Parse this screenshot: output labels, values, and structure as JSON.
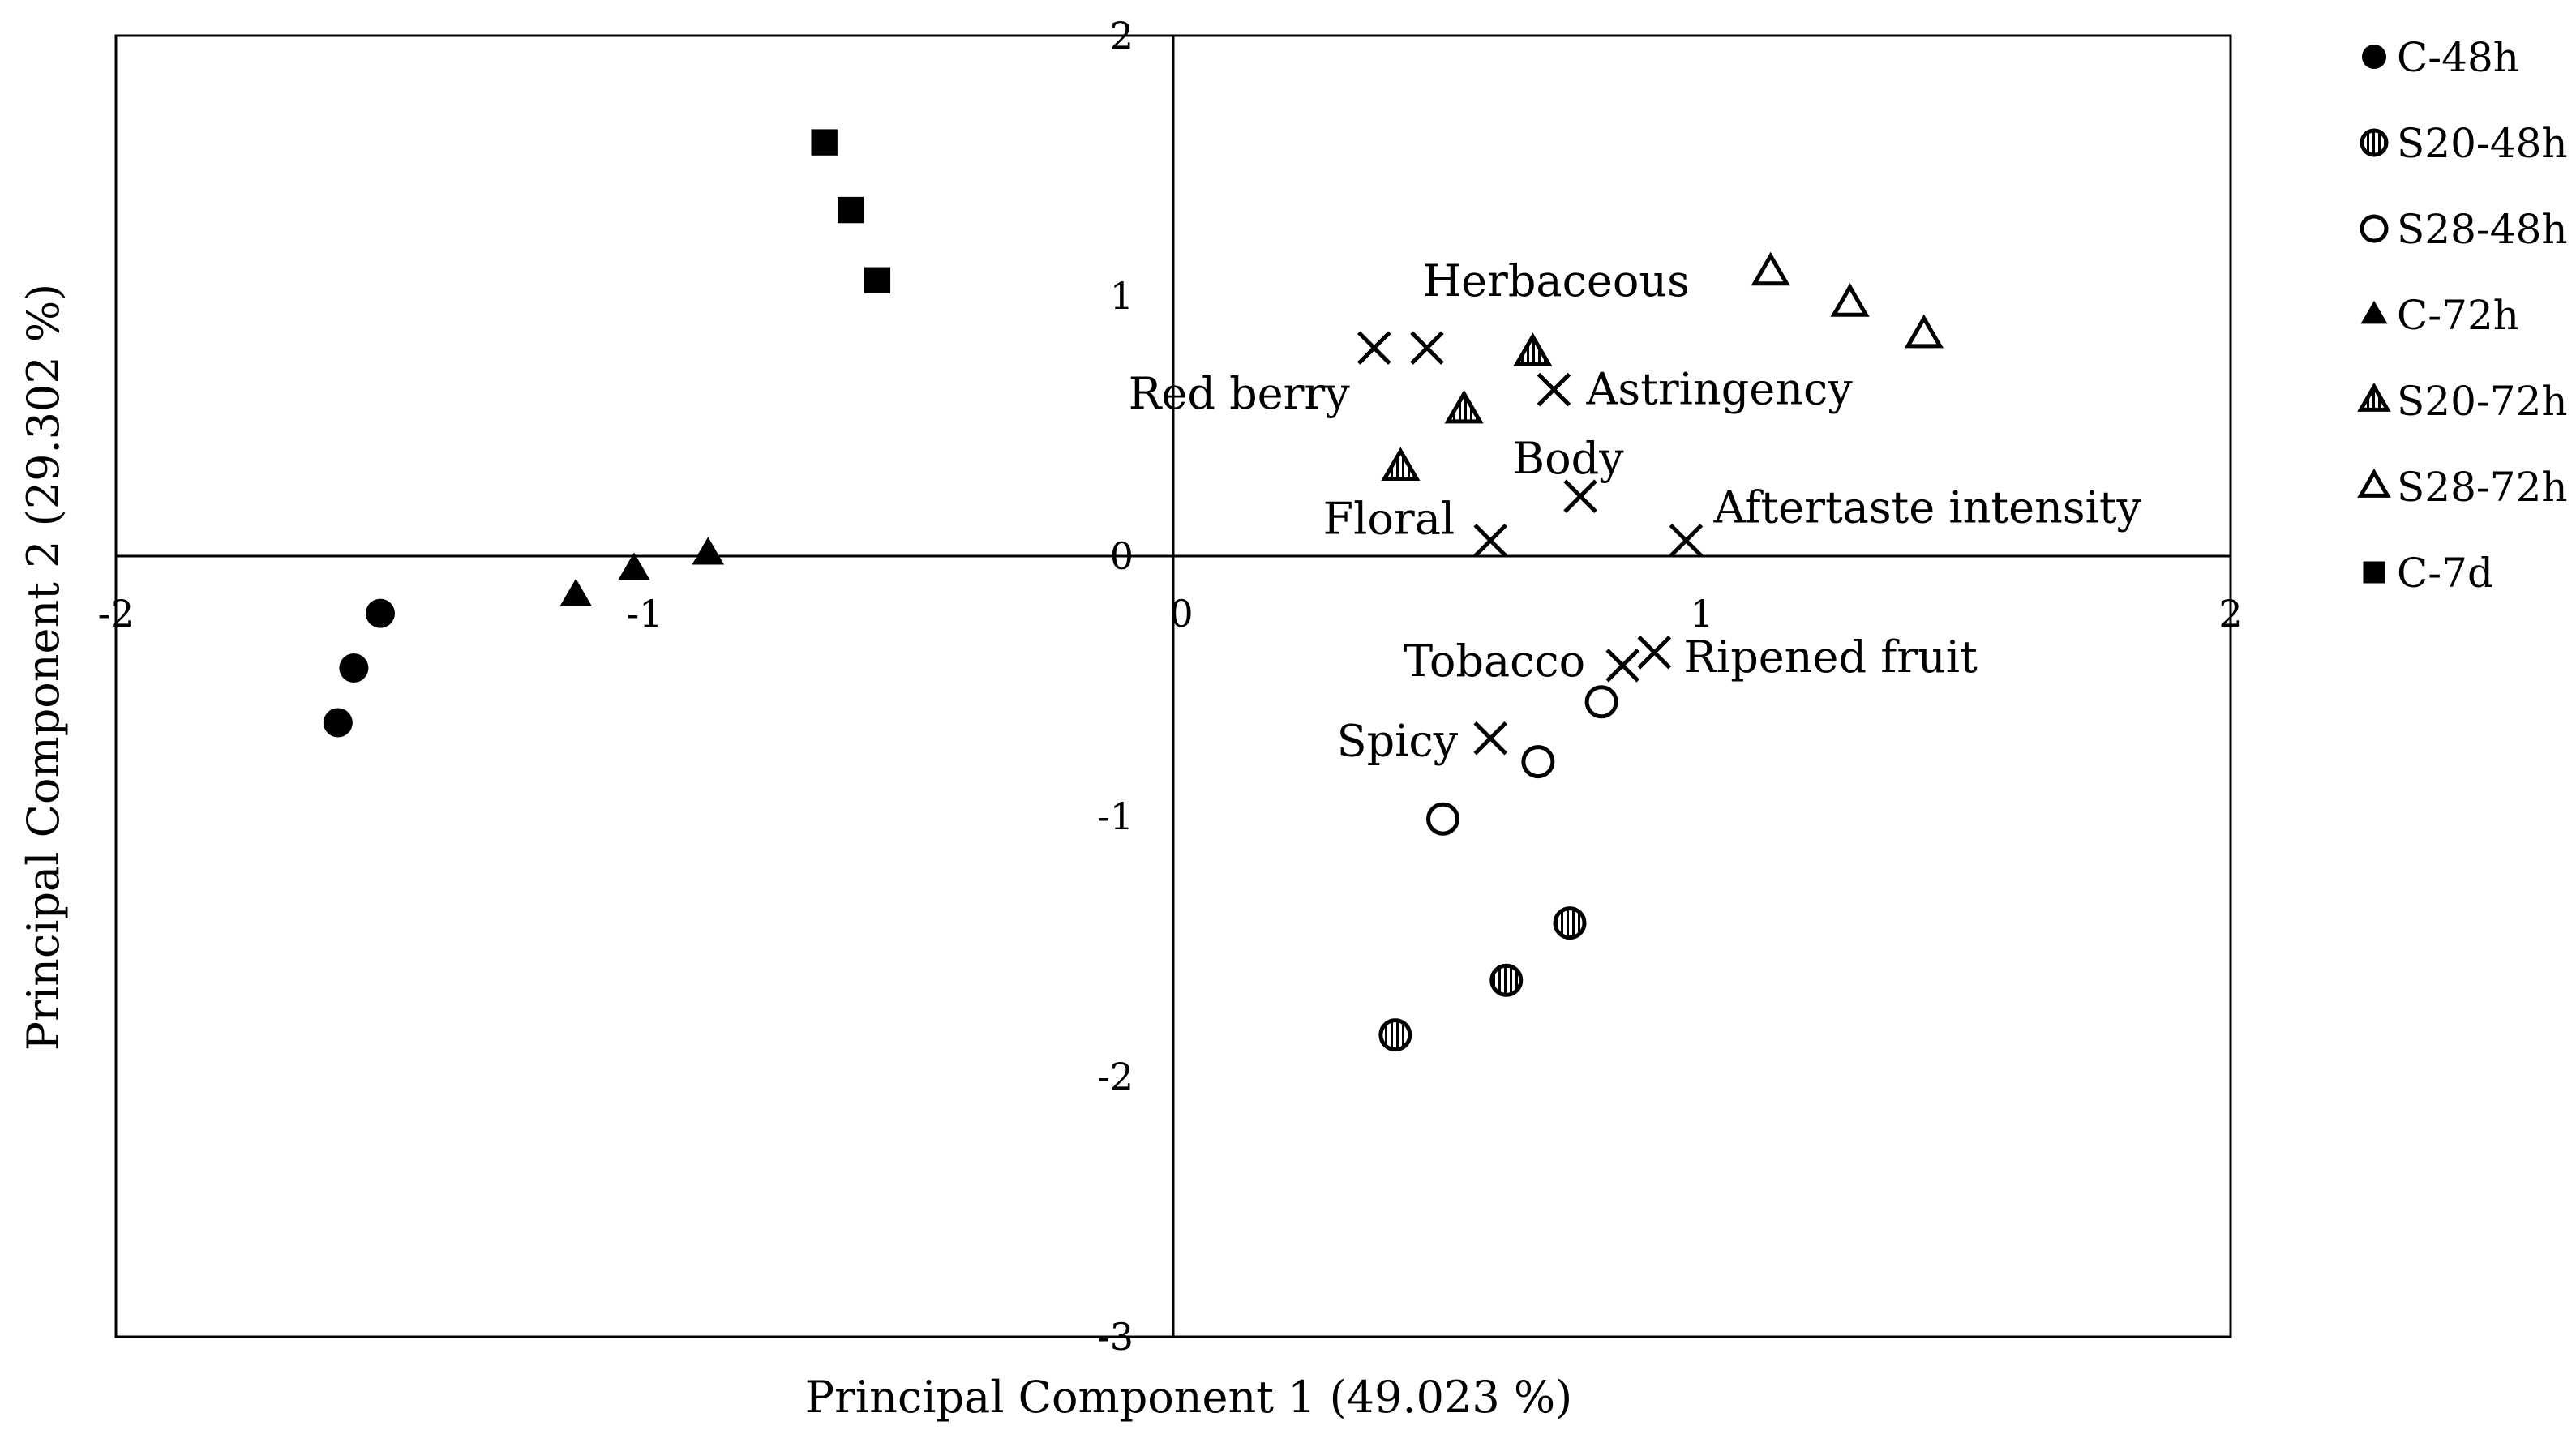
{
  "chart_data": {
    "type": "scatter",
    "title": "",
    "xlabel": "Principal Component 1 (49.023 %)",
    "ylabel": "Principal Component 2 (29.302 %)",
    "xlim": [
      -2,
      2
    ],
    "ylim": [
      -3,
      2
    ],
    "x_ticks": [
      {
        "value": -2,
        "label": "-2"
      },
      {
        "value": -1,
        "label": "-1"
      },
      {
        "value": 0,
        "label": "0"
      },
      {
        "value": 1,
        "label": "1"
      },
      {
        "value": 2,
        "label": "2"
      }
    ],
    "y_ticks": [
      {
        "value": 2,
        "label": "2"
      },
      {
        "value": 1,
        "label": "1"
      },
      {
        "value": 0,
        "label": "0"
      },
      {
        "value": -1,
        "label": "-1"
      },
      {
        "value": -2,
        "label": "-2"
      },
      {
        "value": -3,
        "label": "-3"
      }
    ],
    "grid": false,
    "legend_position": "right",
    "series": [
      {
        "name": "C-48h",
        "marker": "circle-filled",
        "points": [
          [
            -1.5,
            -0.22
          ],
          [
            -1.55,
            -0.43
          ],
          [
            -1.58,
            -0.64
          ]
        ]
      },
      {
        "name": "S20-48h",
        "marker": "circle-striped",
        "points": [
          [
            0.75,
            -1.41
          ],
          [
            0.63,
            -1.63
          ],
          [
            0.42,
            -1.84
          ]
        ]
      },
      {
        "name": "S28-48h",
        "marker": "circle-open",
        "points": [
          [
            0.81,
            -0.56
          ],
          [
            0.69,
            -0.79
          ],
          [
            0.51,
            -1.01
          ]
        ]
      },
      {
        "name": "C-72h",
        "marker": "triangle-filled",
        "points": [
          [
            -1.13,
            -0.15
          ],
          [
            -1.02,
            -0.05
          ],
          [
            -0.88,
            0.01
          ]
        ]
      },
      {
        "name": "S20-72h",
        "marker": "triangle-striped",
        "points": [
          [
            0.68,
            0.78
          ],
          [
            0.55,
            0.56
          ],
          [
            0.43,
            0.34
          ]
        ]
      },
      {
        "name": "S28-72h",
        "marker": "triangle-open",
        "points": [
          [
            1.13,
            1.09
          ],
          [
            1.28,
            0.97
          ],
          [
            1.42,
            0.85
          ]
        ]
      },
      {
        "name": "C-7d",
        "marker": "square-filled",
        "points": [
          [
            -0.66,
            1.59
          ],
          [
            -0.61,
            1.33
          ],
          [
            -0.56,
            1.06
          ]
        ]
      }
    ],
    "attributes": [
      {
        "label": "Herbaceous",
        "x": 0.48,
        "y": 0.8
      },
      {
        "label": "Red berry",
        "x": 0.38,
        "y": 0.8
      },
      {
        "label": "Astringency",
        "x": 0.72,
        "y": 0.64
      },
      {
        "label": "Body",
        "x": 0.77,
        "y": 0.23
      },
      {
        "label": "Floral",
        "x": 0.6,
        "y": 0.06
      },
      {
        "label": "Aftertaste intensity",
        "x": 0.97,
        "y": 0.06
      },
      {
        "label": "Tobacco",
        "x": 0.85,
        "y": -0.42
      },
      {
        "label": "Ripened fruit",
        "x": 0.91,
        "y": -0.37
      },
      {
        "label": "Spicy",
        "x": 0.6,
        "y": -0.7
      }
    ]
  }
}
